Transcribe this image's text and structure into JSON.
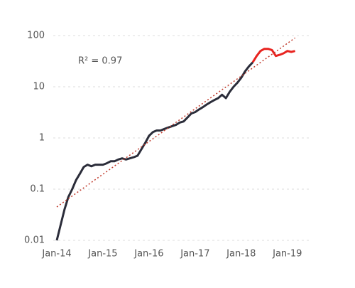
{
  "chart_data": {
    "type": "line",
    "annotation": "R² = 0.97",
    "x": [
      "2014-01",
      "2014-02",
      "2014-03",
      "2014-04",
      "2014-05",
      "2014-06",
      "2014-07",
      "2014-08",
      "2014-09",
      "2014-10",
      "2014-11",
      "2014-12",
      "2015-01",
      "2015-02",
      "2015-03",
      "2015-04",
      "2015-05",
      "2015-06",
      "2015-07",
      "2015-08",
      "2015-09",
      "2015-10",
      "2015-11",
      "2015-12",
      "2016-01",
      "2016-02",
      "2016-03",
      "2016-04",
      "2016-05",
      "2016-06",
      "2016-07",
      "2016-08",
      "2016-09",
      "2016-10",
      "2016-11",
      "2016-12",
      "2017-01",
      "2017-02",
      "2017-03",
      "2017-04",
      "2017-05",
      "2017-06",
      "2017-07",
      "2017-08",
      "2017-09",
      "2017-10",
      "2017-11",
      "2017-12",
      "2018-01",
      "2018-02",
      "2018-03",
      "2018-04",
      "2018-05",
      "2018-06",
      "2018-07",
      "2018-08",
      "2018-09",
      "2018-10",
      "2018-11",
      "2018-12",
      "2019-01",
      "2019-02",
      "2019-03"
    ],
    "series": [
      {
        "color": "#2b2d3a",
        "values": [
          0.01,
          0.02,
          0.04,
          0.07,
          0.1,
          0.15,
          0.2,
          0.27,
          0.3,
          0.28,
          0.3,
          0.3,
          0.3,
          0.32,
          0.35,
          0.35,
          0.38,
          0.4,
          0.38,
          0.4,
          0.42,
          0.45,
          0.6,
          0.8,
          1.1,
          1.3,
          1.4,
          1.4,
          1.5,
          1.6,
          1.7,
          1.8,
          2,
          2.1,
          2.5,
          3,
          3.2,
          3.6,
          4,
          4.5,
          5,
          5.5,
          6,
          7,
          6,
          8,
          10,
          12,
          15,
          20,
          25,
          30,
          null,
          null,
          null,
          null,
          null,
          null,
          null,
          null,
          null,
          null,
          null
        ]
      },
      {
        "color": "#e8231f",
        "values": [
          null,
          null,
          null,
          null,
          null,
          null,
          null,
          null,
          null,
          null,
          null,
          null,
          null,
          null,
          null,
          null,
          null,
          null,
          null,
          null,
          null,
          null,
          null,
          null,
          null,
          null,
          null,
          null,
          null,
          null,
          null,
          null,
          null,
          null,
          null,
          null,
          null,
          null,
          null,
          null,
          null,
          null,
          null,
          null,
          null,
          null,
          null,
          null,
          null,
          null,
          null,
          30,
          40,
          50,
          55,
          55,
          52,
          40,
          42,
          45,
          50,
          48,
          50
        ]
      }
    ],
    "trendline": {
      "x": [
        "2014-01",
        "2019-03"
      ],
      "values": [
        0.045,
        90
      ],
      "color": "#c0392b",
      "dashed": true
    },
    "log_y": true,
    "ylim": [
      0.01,
      100
    ],
    "yticks": [
      0.01,
      0.1,
      1,
      10,
      100
    ],
    "xlim": [
      "2014-01",
      "2019-04"
    ],
    "xticks": [
      {
        "value": "2014-01",
        "label": "Jan-14"
      },
      {
        "value": "2015-01",
        "label": "Jan-15"
      },
      {
        "value": "2016-01",
        "label": "Jan-16"
      },
      {
        "value": "2017-01",
        "label": "Jan-17"
      },
      {
        "value": "2018-01",
        "label": "Jan-18"
      },
      {
        "value": "2019-01",
        "label": "Jan-19"
      }
    ],
    "grid": true
  }
}
